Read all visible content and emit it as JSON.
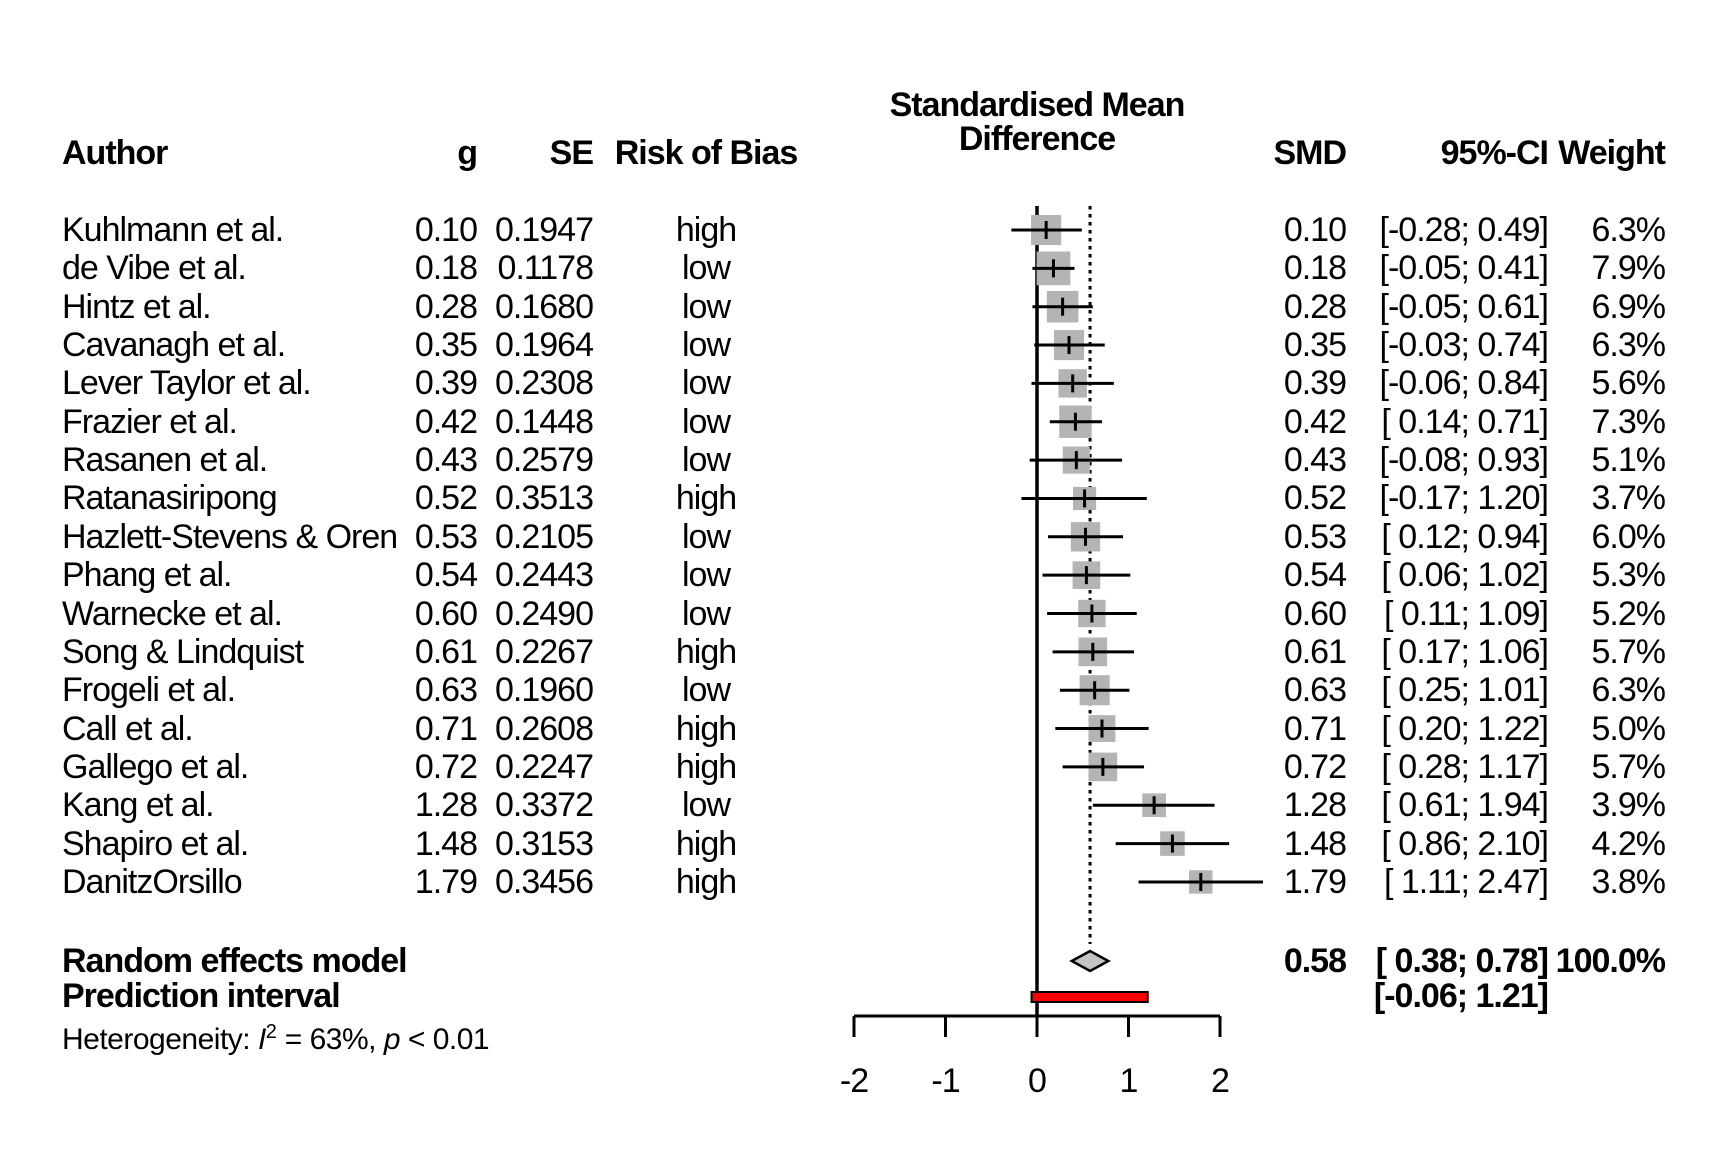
{
  "chart_data": {
    "type": "forest",
    "title_lines": [
      "Standardised Mean",
      "Difference"
    ],
    "headers": {
      "author": "Author",
      "g": "g",
      "se": "SE",
      "rob": "Risk of Bias",
      "smd": "SMD",
      "ci": "95%-CI",
      "weight": "Weight"
    },
    "studies": [
      {
        "author": "Kuhlmann et al.",
        "g": "0.10",
        "se": "0.1947",
        "rob": "high",
        "smd": 0.1,
        "lower": -0.28,
        "upper": 0.49,
        "ci_text": "[-0.28; 0.49]",
        "weight": 6.3,
        "weight_text": "6.3%"
      },
      {
        "author": "de Vibe et al.",
        "g": "0.18",
        "se": "0.1178",
        "rob": "low",
        "smd": 0.18,
        "lower": -0.05,
        "upper": 0.41,
        "ci_text": "[-0.05; 0.41]",
        "weight": 7.9,
        "weight_text": "7.9%"
      },
      {
        "author": "Hintz et al.",
        "g": "0.28",
        "se": "0.1680",
        "rob": "low",
        "smd": 0.28,
        "lower": -0.05,
        "upper": 0.61,
        "ci_text": "[-0.05; 0.61]",
        "weight": 6.9,
        "weight_text": "6.9%"
      },
      {
        "author": "Cavanagh et al.",
        "g": "0.35",
        "se": "0.1964",
        "rob": "low",
        "smd": 0.35,
        "lower": -0.03,
        "upper": 0.74,
        "ci_text": "[-0.03; 0.74]",
        "weight": 6.3,
        "weight_text": "6.3%"
      },
      {
        "author": "Lever Taylor et al.",
        "g": "0.39",
        "se": "0.2308",
        "rob": "low",
        "smd": 0.39,
        "lower": -0.06,
        "upper": 0.84,
        "ci_text": "[-0.06; 0.84]",
        "weight": 5.6,
        "weight_text": "5.6%"
      },
      {
        "author": "Frazier et al.",
        "g": "0.42",
        "se": "0.1448",
        "rob": "low",
        "smd": 0.42,
        "lower": 0.14,
        "upper": 0.71,
        "ci_text": "[ 0.14; 0.71]",
        "weight": 7.3,
        "weight_text": "7.3%"
      },
      {
        "author": "Rasanen et al.",
        "g": "0.43",
        "se": "0.2579",
        "rob": "low",
        "smd": 0.43,
        "lower": -0.08,
        "upper": 0.93,
        "ci_text": "[-0.08; 0.93]",
        "weight": 5.1,
        "weight_text": "5.1%"
      },
      {
        "author": "Ratanasiripong",
        "g": "0.52",
        "se": "0.3513",
        "rob": "high",
        "smd": 0.52,
        "lower": -0.17,
        "upper": 1.2,
        "ci_text": "[-0.17; 1.20]",
        "weight": 3.7,
        "weight_text": "3.7%"
      },
      {
        "author": "Hazlett-Stevens & Oren",
        "g": "0.53",
        "se": "0.2105",
        "rob": "low",
        "smd": 0.53,
        "lower": 0.12,
        "upper": 0.94,
        "ci_text": "[ 0.12; 0.94]",
        "weight": 6.0,
        "weight_text": "6.0%"
      },
      {
        "author": "Phang et al.",
        "g": "0.54",
        "se": "0.2443",
        "rob": "low",
        "smd": 0.54,
        "lower": 0.06,
        "upper": 1.02,
        "ci_text": "[ 0.06; 1.02]",
        "weight": 5.3,
        "weight_text": "5.3%"
      },
      {
        "author": "Warnecke et al.",
        "g": "0.60",
        "se": "0.2490",
        "rob": "low",
        "smd": 0.6,
        "lower": 0.11,
        "upper": 1.09,
        "ci_text": "[ 0.11; 1.09]",
        "weight": 5.2,
        "weight_text": "5.2%"
      },
      {
        "author": "Song & Lindquist",
        "g": "0.61",
        "se": "0.2267",
        "rob": "high",
        "smd": 0.61,
        "lower": 0.17,
        "upper": 1.06,
        "ci_text": "[ 0.17; 1.06]",
        "weight": 5.7,
        "weight_text": "5.7%"
      },
      {
        "author": "Frogeli et al.",
        "g": "0.63",
        "se": "0.1960",
        "rob": "low",
        "smd": 0.63,
        "lower": 0.25,
        "upper": 1.01,
        "ci_text": "[ 0.25; 1.01]",
        "weight": 6.3,
        "weight_text": "6.3%"
      },
      {
        "author": "Call et al.",
        "g": "0.71",
        "se": "0.2608",
        "rob": "high",
        "smd": 0.71,
        "lower": 0.2,
        "upper": 1.22,
        "ci_text": "[ 0.20; 1.22]",
        "weight": 5.0,
        "weight_text": "5.0%"
      },
      {
        "author": "Gallego et al.",
        "g": "0.72",
        "se": "0.2247",
        "rob": "high",
        "smd": 0.72,
        "lower": 0.28,
        "upper": 1.17,
        "ci_text": "[ 0.28; 1.17]",
        "weight": 5.7,
        "weight_text": "5.7%"
      },
      {
        "author": "Kang et al.",
        "g": "1.28",
        "se": "0.3372",
        "rob": "low",
        "smd": 1.28,
        "lower": 0.61,
        "upper": 1.94,
        "ci_text": "[ 0.61; 1.94]",
        "weight": 3.9,
        "weight_text": "3.9%"
      },
      {
        "author": "Shapiro et al.",
        "g": "1.48",
        "se": "0.3153",
        "rob": "high",
        "smd": 1.48,
        "lower": 0.86,
        "upper": 2.1,
        "ci_text": "[ 0.86; 2.10]",
        "weight": 4.2,
        "weight_text": "4.2%"
      },
      {
        "author": "DanitzOrsillo",
        "g": "1.79",
        "se": "0.3456",
        "rob": "high",
        "smd": 1.79,
        "lower": 1.11,
        "upper": 2.47,
        "ci_text": "[ 1.11; 2.47]",
        "weight": 3.8,
        "weight_text": "3.8%"
      }
    ],
    "summary": {
      "label": "Random effects model",
      "smd_text": "0.58",
      "smd": 0.58,
      "lower": 0.38,
      "upper": 0.78,
      "ci_text": "[ 0.38; 0.78]",
      "weight_text": "100.0%"
    },
    "prediction": {
      "label": "Prediction interval",
      "lower": -0.06,
      "upper": 1.21,
      "ci_text": "[-0.06; 1.21]"
    },
    "heterogeneity": {
      "prefix": "Heterogeneity: ",
      "i_label": "I",
      "i_sup": "2",
      "mid": " = 63%, ",
      "p_label": "p",
      "suffix": " < 0.01"
    },
    "axis": {
      "tick_labels": [
        "-2",
        "-1",
        "0",
        "1",
        "2"
      ],
      "tick_values": [
        -2,
        -1,
        0,
        1,
        2
      ],
      "xlim": [
        -2,
        2
      ],
      "reference_line": 0,
      "pooled_line": 0.58
    },
    "colors": {
      "square": "#b4b4b4",
      "diamond_fill": "#c4c4c4",
      "prediction_bar": "#ff0000",
      "line": "#000000"
    }
  }
}
